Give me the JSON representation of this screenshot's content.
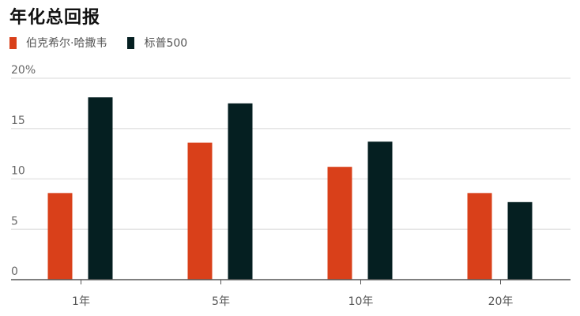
{
  "chart_data": {
    "type": "bar",
    "title": "年化总回报",
    "xlabel": "",
    "ylabel": "",
    "categories": [
      "1年",
      "5年",
      "10年",
      "20年"
    ],
    "series": [
      {
        "name": "伯克希尔·哈撒韦",
        "values": [
          8.6,
          13.6,
          11.2,
          8.6
        ],
        "color": "#d9401a"
      },
      {
        "name": "标普500",
        "values": [
          18.1,
          17.5,
          13.7,
          7.7
        ],
        "color": "#051f21"
      }
    ],
    "yticks": [
      "0",
      "5",
      "10",
      "15",
      "20%"
    ],
    "ylim": [
      0,
      20
    ],
    "grid": true,
    "legend_position": "top-left"
  }
}
